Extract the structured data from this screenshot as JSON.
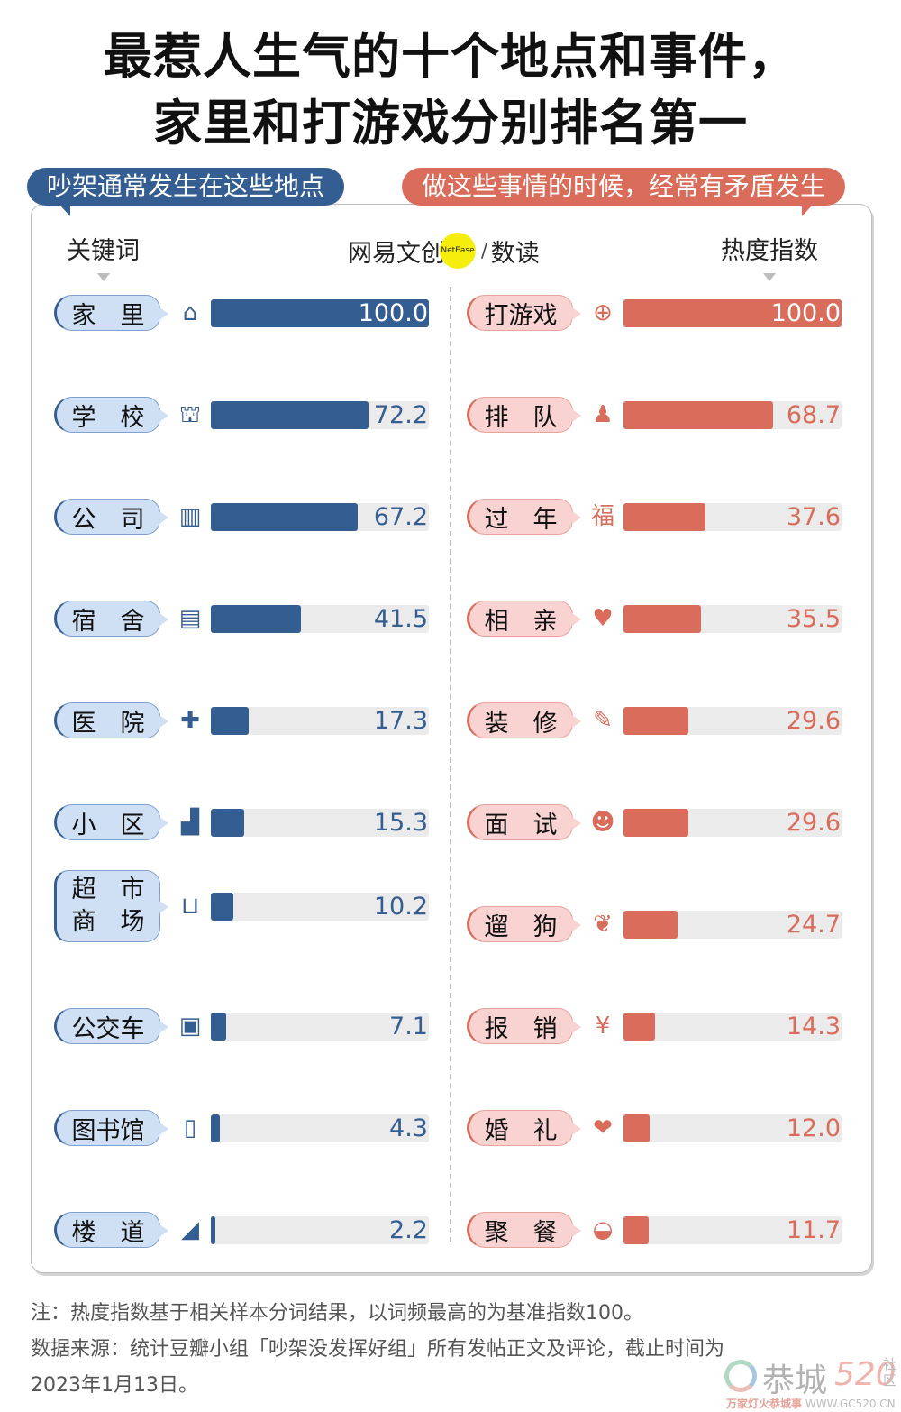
{
  "title": {
    "line1": "最惹人生气的十个地点和事件，",
    "line2": "家里和打游戏分别排名第一"
  },
  "tags": {
    "left": "吵架通常发生在这些地点",
    "right": "做这些事情的时候，经常有矛盾发生"
  },
  "headers": {
    "left": "关键词",
    "right": "热度指数"
  },
  "logo": {
    "brand": "网易文创",
    "badge": "NetEase",
    "slash": "/",
    "product": "数读"
  },
  "colors": {
    "blue": "#345d91",
    "red": "#d96c5a",
    "track": "#ebebeb",
    "pill_blue": "#cfe0f5",
    "pill_red": "#f9d2d2"
  },
  "places": [
    {
      "label": "家　里",
      "icon": "house-icon",
      "glyph": "⌂",
      "value": "100.0"
    },
    {
      "label": "学　校",
      "icon": "school-icon",
      "glyph": "⛫",
      "value": "72.2"
    },
    {
      "label": "公　司",
      "icon": "office-building-icon",
      "glyph": "▥",
      "value": "67.2"
    },
    {
      "label": "宿　舍",
      "icon": "dormitory-icon",
      "glyph": "▤",
      "value": "41.5"
    },
    {
      "label": "医　院",
      "icon": "hospital-icon",
      "glyph": "✚",
      "value": "17.3"
    },
    {
      "label": "小　区",
      "icon": "neighborhood-icon",
      "glyph": "▟",
      "value": "15.3"
    },
    {
      "label": "超　市\n商　场",
      "icon": "shopping-basket-icon",
      "glyph": "⊔",
      "value": "10.2"
    },
    {
      "label": "公交车",
      "icon": "bus-icon",
      "glyph": "▣",
      "value": "7.1"
    },
    {
      "label": "图书馆",
      "icon": "book-icon",
      "glyph": "▯",
      "value": "4.3"
    },
    {
      "label": "楼　道",
      "icon": "stairs-icon",
      "glyph": "◢",
      "value": "2.2"
    }
  ],
  "events": [
    {
      "label": "打游戏",
      "icon": "gamepad-icon",
      "glyph": "⊕",
      "value": "100.0"
    },
    {
      "label": "排　队",
      "icon": "queue-people-icon",
      "glyph": "♟",
      "value": "68.7"
    },
    {
      "label": "过　年",
      "icon": "fu-character-icon",
      "glyph": "福",
      "value": "37.6"
    },
    {
      "label": "相　亲",
      "icon": "hearts-icon",
      "glyph": "♥",
      "value": "35.5"
    },
    {
      "label": "装　修",
      "icon": "paintbrush-icon",
      "glyph": "✎",
      "value": "29.6"
    },
    {
      "label": "面　试",
      "icon": "interview-icon",
      "glyph": "☻",
      "value": "29.6"
    },
    {
      "label": "遛　狗",
      "icon": "dog-icon",
      "glyph": "❦",
      "value": "24.7"
    },
    {
      "label": "报　销",
      "icon": "reimbursement-icon",
      "glyph": "¥",
      "value": "14.3"
    },
    {
      "label": "婚　礼",
      "icon": "wedding-couple-icon",
      "glyph": "❤",
      "value": "12.0"
    },
    {
      "label": "聚　餐",
      "icon": "bowl-chopsticks-icon",
      "glyph": "◒",
      "value": "11.7"
    }
  ],
  "notes": {
    "line1": "注：热度指数基于相关样本分词结果，以词频最高的为基准指数100。",
    "line2": "数据来源：统计豆瓣小组「吵架没发挥好组」所有发帖正文及评论，截止时间为",
    "line3": "2023年1月13日。"
  },
  "watermark": {
    "name": "恭城",
    "number": "520",
    "suffix": "社区",
    "slogan": "万家灯火恭城事",
    "url": "WWW.GC520.CN"
  },
  "chart_data": [
    {
      "type": "bar",
      "orientation": "horizontal",
      "title": "吵架通常发生在这些地点",
      "xlabel": "热度指数",
      "ylabel": "关键词",
      "categories": [
        "家里",
        "学校",
        "公司",
        "宿舍",
        "医院",
        "小区",
        "超市商场",
        "公交车",
        "图书馆",
        "楼道"
      ],
      "values": [
        100.0,
        72.2,
        67.2,
        41.5,
        17.3,
        15.3,
        10.2,
        7.1,
        4.3,
        2.2
      ],
      "xlim": [
        0,
        100
      ],
      "color": "#345d91",
      "grid": false
    },
    {
      "type": "bar",
      "orientation": "horizontal",
      "title": "做这些事情的时候，经常有矛盾发生",
      "xlabel": "热度指数",
      "ylabel": "关键词",
      "categories": [
        "打游戏",
        "排队",
        "过年",
        "相亲",
        "装修",
        "面试",
        "遛狗",
        "报销",
        "婚礼",
        "聚餐"
      ],
      "values": [
        100.0,
        68.7,
        37.6,
        35.5,
        29.6,
        29.6,
        24.7,
        14.3,
        12.0,
        11.7
      ],
      "xlim": [
        0,
        100
      ],
      "color": "#d96c5a",
      "grid": false
    }
  ]
}
